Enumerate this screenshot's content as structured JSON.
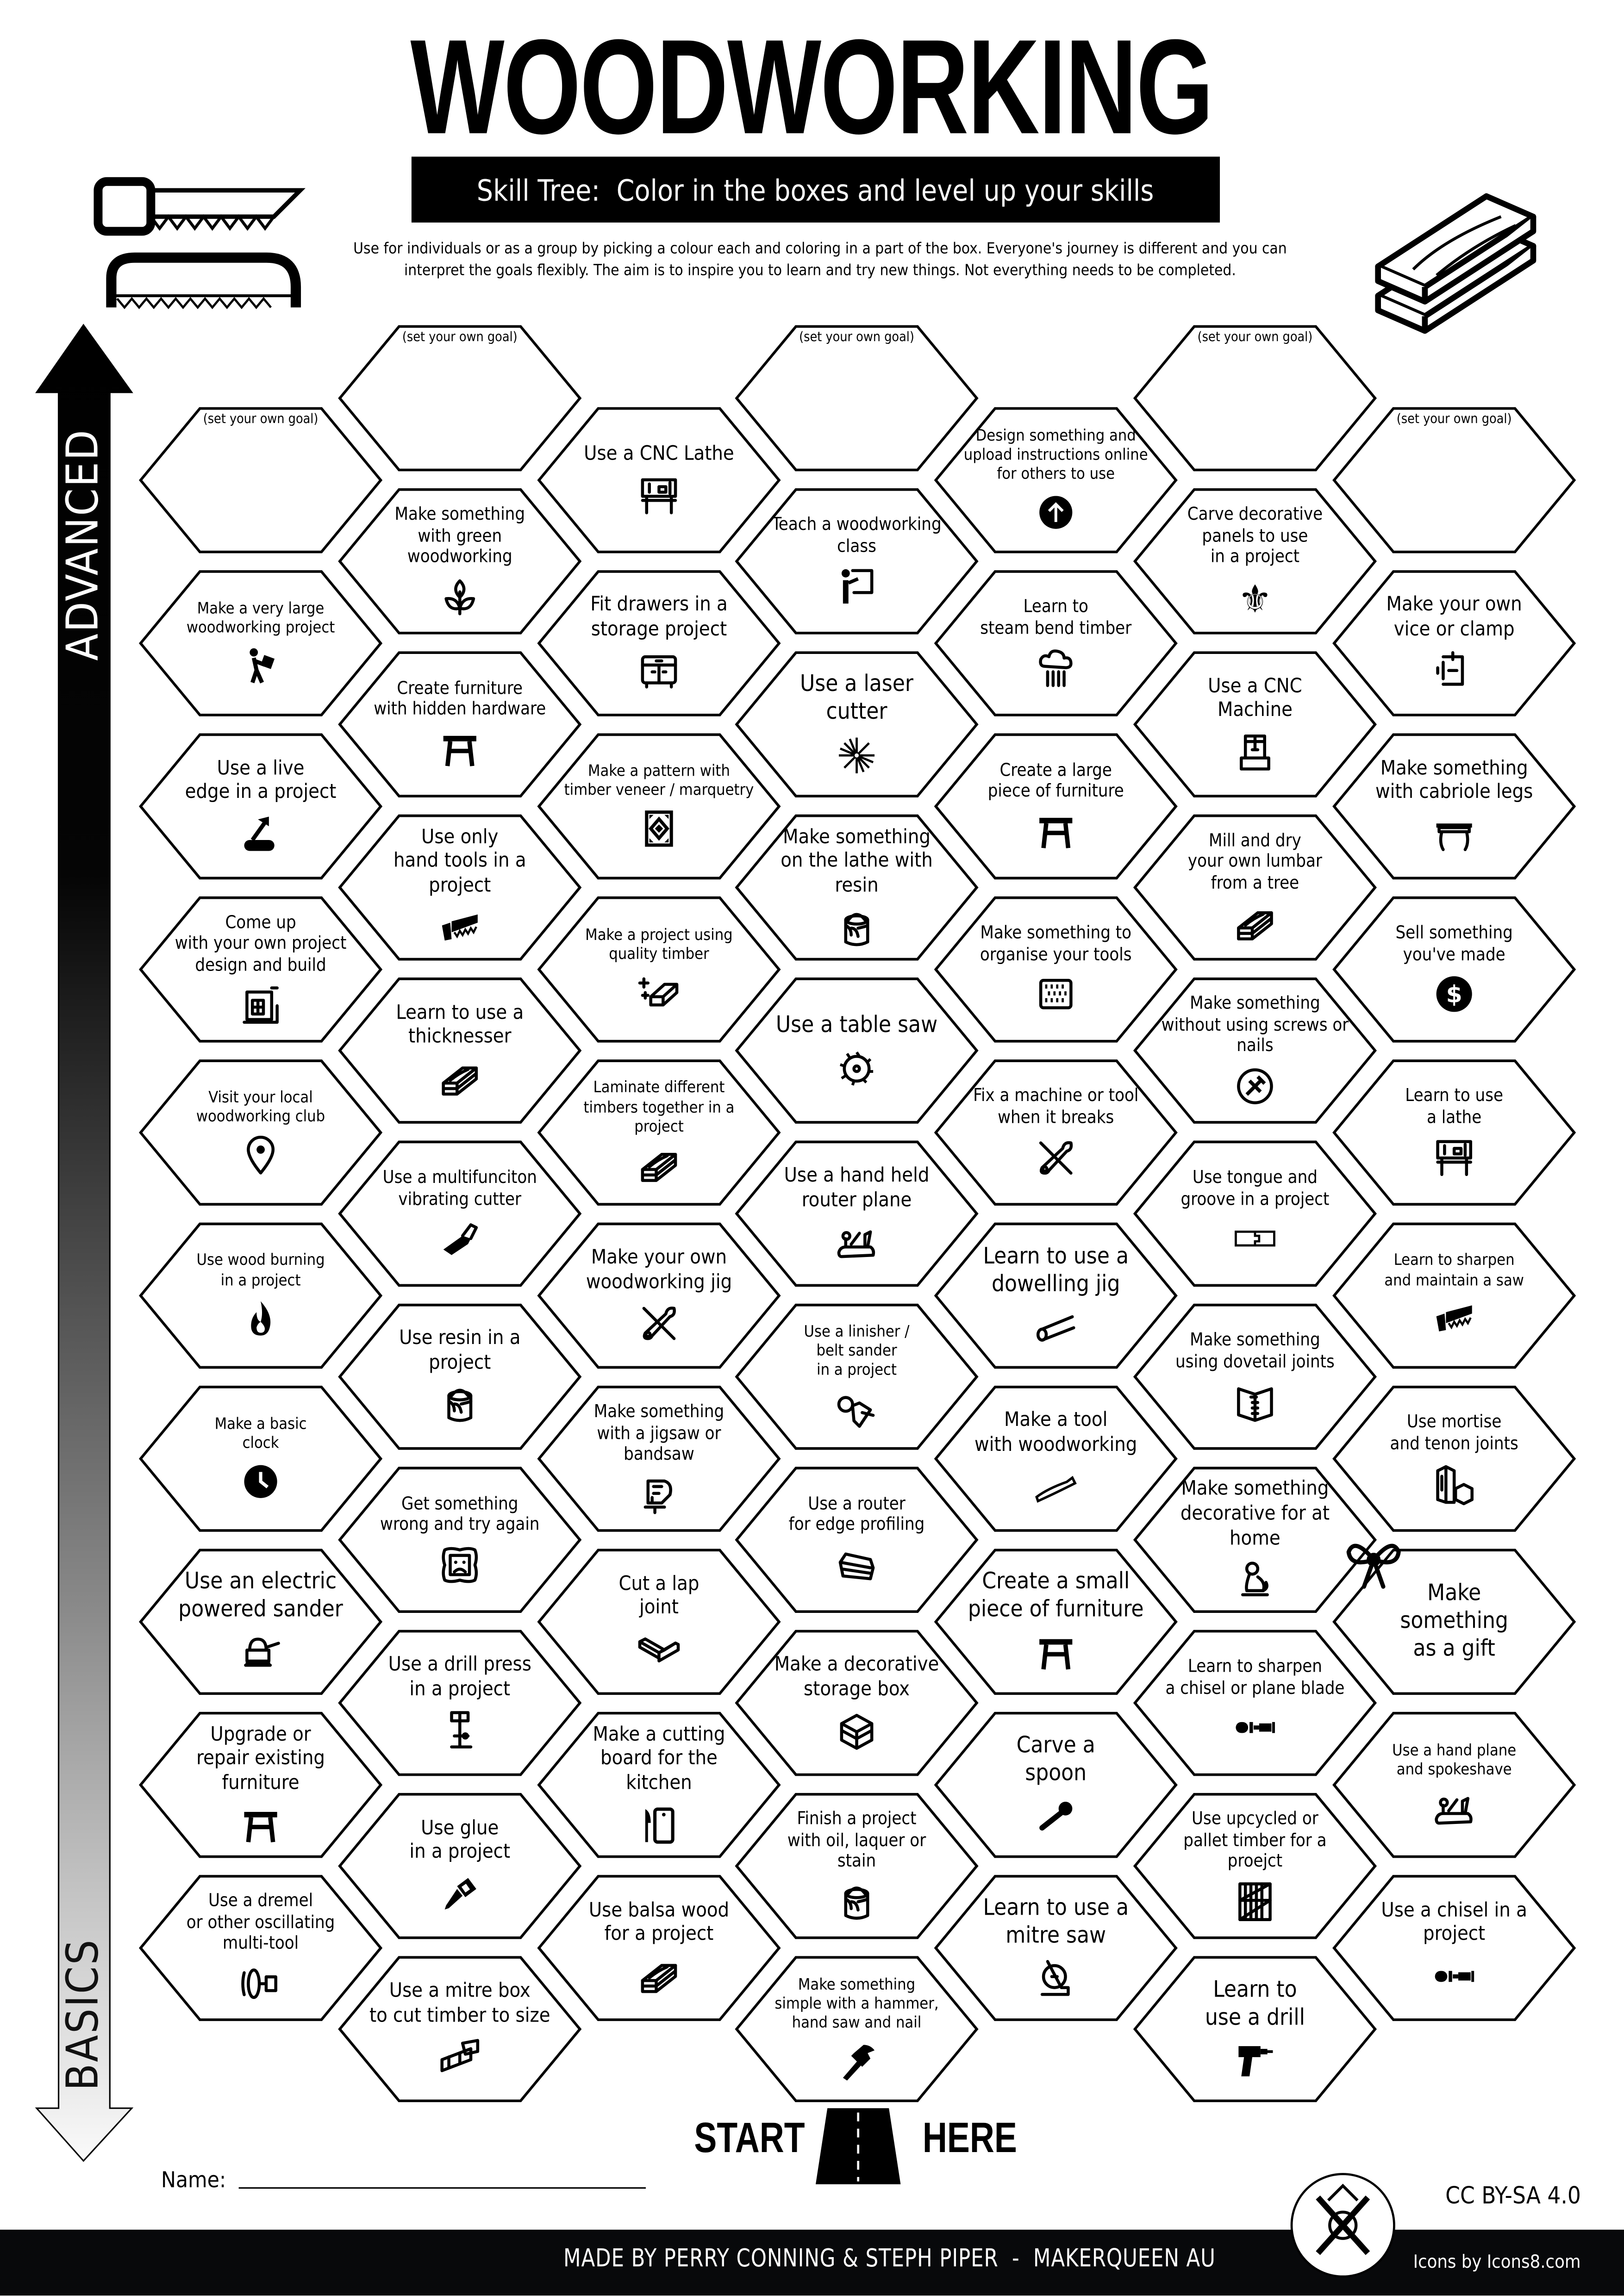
{
  "header": {
    "title": "WOODWORKING",
    "subtitle": "Skill Tree:  Color in the boxes and level up your skills",
    "description": "Use for individuals or as a group by picking a colour each and coloring in a part of the box.  Everyone's journey is different and you can\ninterpret the goals flexibly.  The aim is to inspire you to learn and try new things. Not everything needs to be completed."
  },
  "progress_arrow": {
    "top_label": "ADVANCED",
    "bottom_label": "BASICS"
  },
  "hexes": {
    "columns": [
      [
        {
          "text": "(set your own goal)",
          "icon": ""
        },
        {
          "text": "Make a very large\nwoodworking project",
          "icon": "person-carrying-box"
        },
        {
          "text": "Use a live\nedge in a project",
          "icon": "axe-log"
        },
        {
          "text": "Come up\nwith your own project\ndesign and build",
          "icon": "blueprint"
        },
        {
          "text": "Visit your local\nwoodworking club",
          "icon": "location-pin"
        },
        {
          "text": "Use wood burning\nin a project",
          "icon": "fire"
        },
        {
          "text": "Make a basic\nclock",
          "icon": "clock"
        },
        {
          "text": "Use an electric\npowered sander",
          "icon": "orbital-sander"
        },
        {
          "text": "Upgrade or\nrepair existing\nfurniture",
          "icon": "stool"
        },
        {
          "text": "Use a dremel\nor other oscillating\nmulti-tool",
          "icon": "dremel"
        }
      ],
      [
        {
          "text": "(set your own goal)",
          "icon": ""
        },
        {
          "text": "Make something\nwith green woodworking",
          "icon": "sprout"
        },
        {
          "text": "Create furniture\nwith hidden hardware",
          "icon": "stool"
        },
        {
          "text": "Use only\nhand tools in a\nproject",
          "icon": "handsaw"
        },
        {
          "text": "Learn to use a\nthicknesser",
          "icon": "planks"
        },
        {
          "text": "Use a multifunciton\nvibrating cutter",
          "icon": "multitool"
        },
        {
          "text": "Use resin in a\nproject",
          "icon": "paint-bucket"
        },
        {
          "text": "Get something\nwrong and try again",
          "icon": "sad-frame"
        },
        {
          "text": "Use a drill press\nin a project",
          "icon": "drill-press"
        },
        {
          "text": "Use glue\nin a project",
          "icon": "glue"
        },
        {
          "text": "Use a mitre box\nto cut timber to size",
          "icon": "mitre-box"
        }
      ],
      [
        {
          "text": "Use a CNC Lathe",
          "icon": "lathe"
        },
        {
          "text": "Fit drawers in a\nstorage project",
          "icon": "cabinet"
        },
        {
          "text": "Make a pattern with\ntimber veneer / marquetry",
          "icon": "marquetry-pattern"
        },
        {
          "text": "Make a project using\nquality timber",
          "icon": "sparkle-planks"
        },
        {
          "text": "Laminate different\ntimbers together in a\nproject",
          "icon": "planks"
        },
        {
          "text": "Make your own\nwoodworking jig",
          "icon": "wrench-screwdriver"
        },
        {
          "text": "Make something\nwith a jigsaw or\nbandsaw",
          "icon": "jigsaw"
        },
        {
          "text": "Cut a lap\njoint",
          "icon": "lap-joint"
        },
        {
          "text": "Make a cutting\nboard for the\nkitchen",
          "icon": "cutting-board"
        },
        {
          "text": "Use balsa wood\nfor a project",
          "icon": "planks"
        }
      ],
      [
        {
          "text": "(set your own goal)",
          "icon": ""
        },
        {
          "text": "Teach a woodworking\nclass",
          "icon": "teacher"
        },
        {
          "text": "Use a laser\ncutter",
          "icon": "laser"
        },
        {
          "text": "Make something\non the lathe with resin",
          "icon": "paint-bucket"
        },
        {
          "text": "Use a table saw",
          "icon": "saw-blade"
        },
        {
          "text": "Use a hand held\nrouter plane",
          "icon": "hand-plane"
        },
        {
          "text": "Use a linisher /\nbelt sander\nin a project",
          "icon": "belt-sander"
        },
        {
          "text": "Use a router\nfor edge profiling",
          "icon": "router"
        },
        {
          "text": "Make a decorative\nstorage box",
          "icon": "chest"
        },
        {
          "text": "Finish a project\nwith oil,  laquer or\nstain",
          "icon": "paint-bucket"
        },
        {
          "text": "Make something\nsimple with a hammer,\nhand saw and nail",
          "icon": "hammer"
        }
      ],
      [
        {
          "text": "Design something and\nupload instructions online\nfor others to use",
          "icon": "upload"
        },
        {
          "text": "Learn to\nsteam bend timber",
          "icon": "steam"
        },
        {
          "text": "Create a large\npiece of furniture",
          "icon": "stool"
        },
        {
          "text": "Make something to\norganise your tools",
          "icon": "pegboard"
        },
        {
          "text": "Fix a machine or tool\nwhen it breaks",
          "icon": "wrench-screwdriver"
        },
        {
          "text": "Learn to use a\ndowelling jig",
          "icon": "dowel"
        },
        {
          "text": "Make a tool\nwith woodworking",
          "icon": "spatula"
        },
        {
          "text": "Create a small\npiece of furniture",
          "icon": "stool"
        },
        {
          "text": "Carve a\nspoon",
          "icon": "spoon"
        },
        {
          "text": "Learn to use a\nmitre saw",
          "icon": "mitre-saw"
        }
      ],
      [
        {
          "text": "(set your own goal)",
          "icon": ""
        },
        {
          "text": "Carve decorative\npanels to use\nin a project",
          "icon": "fleur-de-lis"
        },
        {
          "text": "Use a CNC\nMachine",
          "icon": "cnc-machine"
        },
        {
          "text": "Mill and dry\nyour own lumbar\nfrom a tree",
          "icon": "planks"
        },
        {
          "text": "Make something\nwithout using screws or\nnails",
          "icon": "no-hammer"
        },
        {
          "text": "Use tongue and\ngroove in a project",
          "icon": "tongue-groove"
        },
        {
          "text": "Make something\nusing dovetail joints",
          "icon": "dovetail"
        },
        {
          "text": "Make something\ndecorative for at\nhome",
          "icon": "lion-statue"
        },
        {
          "text": "Learn to sharpen\na chisel or plane blade",
          "icon": "chisel"
        },
        {
          "text": "Use upcycled or\npallet timber for a\nproejct",
          "icon": "crate"
        },
        {
          "text": "Learn to\nuse a drill",
          "icon": "drill"
        }
      ],
      [
        {
          "text": "(set your own goal)",
          "icon": ""
        },
        {
          "text": "Make your own\nvice or clamp",
          "icon": "clamp"
        },
        {
          "text": "Make something\nwith cabriole legs",
          "icon": "table"
        },
        {
          "text": "Sell something\nyou've made",
          "icon": "dollar"
        },
        {
          "text": "Learn to use\na lathe",
          "icon": "lathe"
        },
        {
          "text": "Learn to sharpen\nand maintain a saw",
          "icon": "handsaw"
        },
        {
          "text": "Use mortise\nand tenon joints",
          "icon": "mortise-tenon"
        },
        {
          "text": "Make\nsomething\nas a gift",
          "icon": "gift-bow"
        },
        {
          "text": "Use a hand plane\nand spokeshave",
          "icon": "hand-plane"
        },
        {
          "text": "Use a chisel in a\nproject",
          "icon": "chisel"
        }
      ]
    ]
  },
  "start": {
    "left": "START",
    "right": "HERE"
  },
  "name_field": {
    "label": "Name:",
    "value": ""
  },
  "license": "CC BY-SA 4.0",
  "footer": {
    "credit": "MADE BY PERRY CONNING & STEPH PIPER  -  MAKERQUEEN AU",
    "icons_credit": "Icons by Icons8.com"
  },
  "colors": {
    "ink": "#000000",
    "footer_bg": "#08090b",
    "paper": "#ffffff"
  }
}
